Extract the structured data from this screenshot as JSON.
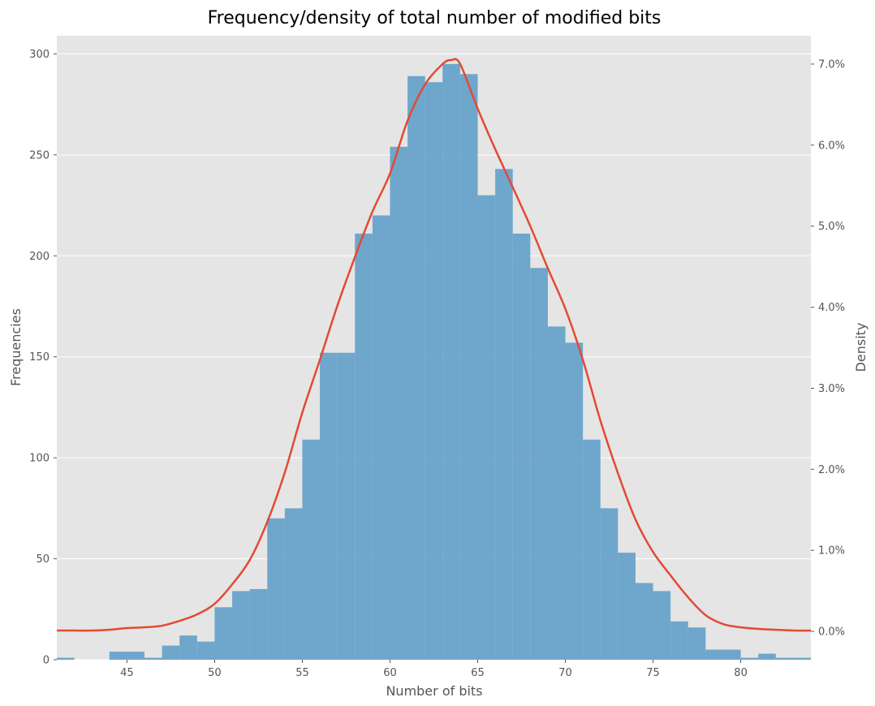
{
  "chart_data": {
    "type": "bar",
    "title": "Frequency/density of total number of modified bits",
    "xlabel": "Number of bits",
    "ylabel": "Frequencies",
    "y2label": "Density",
    "xlim": [
      41,
      84
    ],
    "ylim": [
      0,
      309
    ],
    "y2lim": [
      -0.0035,
      0.0735
    ],
    "xticks": [
      45,
      50,
      55,
      60,
      65,
      70,
      75,
      80
    ],
    "yticks": [
      0,
      50,
      100,
      150,
      200,
      250,
      300
    ],
    "y2ticks": [
      {
        "value": 0.0,
        "label": "0.0%"
      },
      {
        "value": 0.01,
        "label": "1.0%"
      },
      {
        "value": 0.02,
        "label": "2.0%"
      },
      {
        "value": 0.03,
        "label": "3.0%"
      },
      {
        "value": 0.04,
        "label": "4.0%"
      },
      {
        "value": 0.05,
        "label": "5.0%"
      },
      {
        "value": 0.06,
        "label": "6.0%"
      },
      {
        "value": 0.07,
        "label": "7.0%"
      }
    ],
    "grid": "horizontal",
    "bin_edges": [
      41,
      42,
      43,
      44,
      45,
      46,
      47,
      48,
      49,
      50,
      51,
      52,
      53,
      54,
      55,
      56,
      57,
      58,
      59,
      60,
      61,
      62,
      63,
      64,
      65,
      66,
      67,
      68,
      69,
      70,
      71,
      72,
      73,
      74,
      75,
      76,
      77,
      78,
      79,
      80,
      81,
      82,
      83,
      84
    ],
    "histogram": [
      1,
      0,
      0,
      4,
      4,
      1,
      7,
      12,
      9,
      26,
      34,
      35,
      70,
      75,
      109,
      152,
      152,
      211,
      220,
      254,
      289,
      286,
      295,
      290,
      230,
      243,
      211,
      194,
      165,
      157,
      109,
      75,
      53,
      38,
      34,
      19,
      16,
      5,
      5,
      1,
      3,
      1,
      1
    ],
    "density_curve": {
      "x": [
        41,
        42,
        43,
        44,
        45,
        46,
        47,
        48,
        49,
        50,
        51,
        52,
        53,
        54,
        55,
        56,
        57,
        58,
        59,
        60,
        61,
        62,
        63,
        63.5,
        64,
        65,
        66,
        67,
        68,
        69,
        70,
        71,
        72,
        73,
        74,
        75,
        76,
        77,
        78,
        79,
        80,
        81,
        82,
        83,
        84
      ],
      "y": [
        0.0001,
        0.0001,
        0.0001,
        0.0002,
        0.0004,
        0.0005,
        0.0007,
        0.0013,
        0.0021,
        0.0034,
        0.0058,
        0.0088,
        0.0135,
        0.0196,
        0.027,
        0.0335,
        0.0402,
        0.0462,
        0.0518,
        0.0565,
        0.063,
        0.0675,
        0.07,
        0.0705,
        0.07,
        0.0645,
        0.0595,
        0.0548,
        0.05,
        0.0448,
        0.0398,
        0.0335,
        0.026,
        0.0195,
        0.0138,
        0.0098,
        0.0069,
        0.0042,
        0.002,
        0.0009,
        0.0005,
        0.0003,
        0.0002,
        0.0001,
        0.0001
      ]
    },
    "colors": {
      "bars": "#5a9bc7",
      "curve": "#e24a33",
      "background": "#e5e5e5",
      "grid": "#ffffff"
    }
  }
}
